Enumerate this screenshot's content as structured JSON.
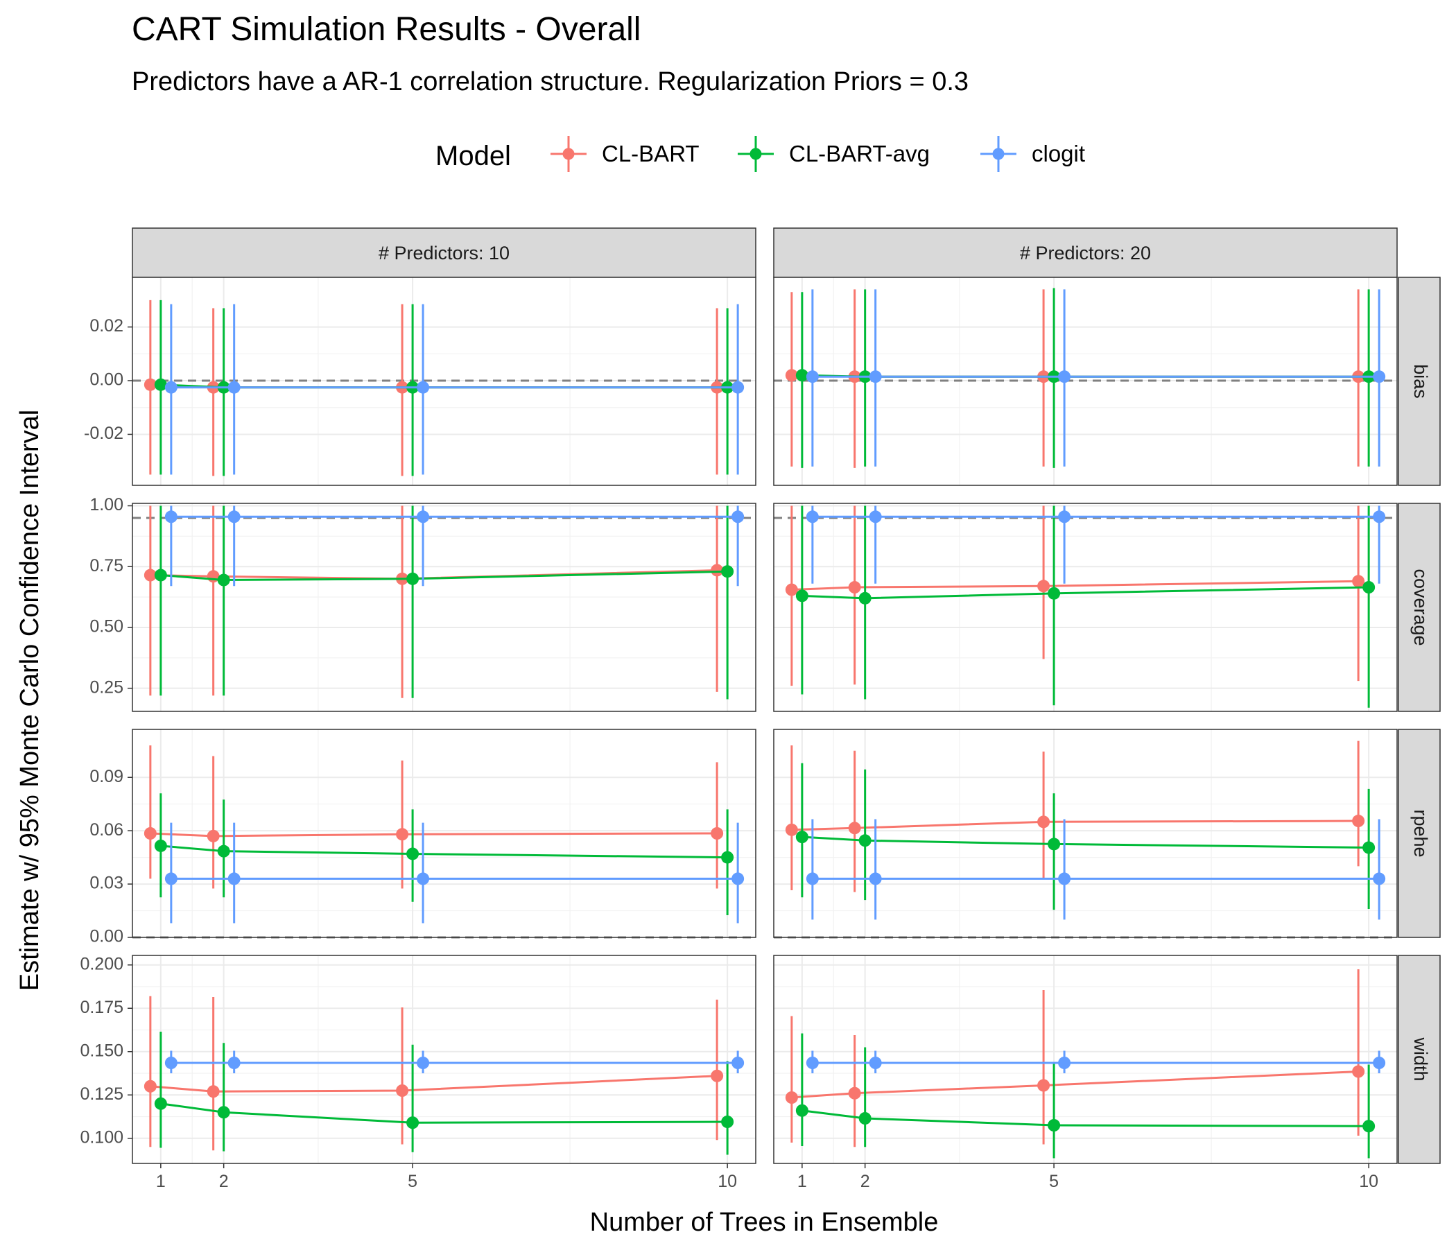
{
  "chart_data": {
    "type": "line",
    "title": "CART Simulation Results - Overall",
    "subtitle": "Predictors have a AR-1 correlation structure. Regularization Priors = 0.3",
    "xlabel": "Number of Trees in Ensemble",
    "ylabel": "Estimate w/ 95% Monte Carlo Confidence Interval",
    "legend": {
      "title": "Model",
      "position": "top",
      "entries": [
        {
          "name": "CL-BART",
          "color": "#F8766D"
        },
        {
          "name": "CL-BART-avg",
          "color": "#00BA38"
        },
        {
          "name": "clogit",
          "color": "#619CFF"
        }
      ]
    },
    "x_ticks": [
      1,
      2,
      5,
      10
    ],
    "x_range": [
      0.55,
      10.45
    ],
    "grid": true,
    "columns": [
      {
        "label": "# Predictors: 10"
      },
      {
        "label": "# Predictors: 20"
      }
    ],
    "rows": [
      {
        "label": "bias",
        "ylim": [
          -0.039,
          0.0385
        ],
        "ticks": [
          -0.02,
          0.0,
          0.02
        ],
        "tick_labels": [
          "-0.02",
          "0.00",
          "0.02"
        ],
        "reference_line": 0.0
      },
      {
        "label": "coverage",
        "ylim": [
          0.155,
          1.01
        ],
        "ticks": [
          0.25,
          0.5,
          0.75,
          1.0
        ],
        "tick_labels": [
          "0.25",
          "0.50",
          "0.75",
          "1.00"
        ],
        "reference_line": 0.95
      },
      {
        "label": "rpehe",
        "ylim": [
          0.0,
          0.117
        ],
        "ticks": [
          0.0,
          0.03,
          0.06,
          0.09
        ],
        "tick_labels": [
          "0.00",
          "0.03",
          "0.06",
          "0.09"
        ],
        "reference_line": 0.0
      },
      {
        "label": "width",
        "ylim": [
          0.0855,
          0.2055
        ],
        "ticks": [
          0.1,
          0.125,
          0.15,
          0.175,
          0.2
        ],
        "tick_labels": [
          "0.100",
          "0.125",
          "0.150",
          "0.175",
          "0.200"
        ],
        "reference_line": null
      }
    ],
    "panels": [
      {
        "row": "bias",
        "column": "# Predictors: 10",
        "series": [
          {
            "model": "CL-BART",
            "points": [
              {
                "x": 1,
                "y": -0.0015,
                "lo": -0.035,
                "hi": 0.03
              },
              {
                "x": 2,
                "y": -0.0025,
                "lo": -0.0355,
                "hi": 0.027
              },
              {
                "x": 5,
                "y": -0.0025,
                "lo": -0.0355,
                "hi": 0.0285
              },
              {
                "x": 10,
                "y": -0.0025,
                "lo": -0.035,
                "hi": 0.027
              }
            ]
          },
          {
            "model": "CL-BART-avg",
            "points": [
              {
                "x": 1,
                "y": -0.0015,
                "lo": -0.035,
                "hi": 0.03
              },
              {
                "x": 2,
                "y": -0.0025,
                "lo": -0.0355,
                "hi": 0.027
              },
              {
                "x": 5,
                "y": -0.0025,
                "lo": -0.0355,
                "hi": 0.0285
              },
              {
                "x": 10,
                "y": -0.0025,
                "lo": -0.035,
                "hi": 0.027
              }
            ]
          },
          {
            "model": "clogit",
            "points": [
              {
                "x": 1,
                "y": -0.0025,
                "lo": -0.035,
                "hi": 0.0285
              },
              {
                "x": 2,
                "y": -0.0025,
                "lo": -0.035,
                "hi": 0.0285
              },
              {
                "x": 5,
                "y": -0.0025,
                "lo": -0.035,
                "hi": 0.0285
              },
              {
                "x": 10,
                "y": -0.0025,
                "lo": -0.035,
                "hi": 0.0285
              }
            ]
          }
        ]
      },
      {
        "row": "bias",
        "column": "# Predictors: 20",
        "series": [
          {
            "model": "CL-BART",
            "points": [
              {
                "x": 1,
                "y": 0.002,
                "lo": -0.032,
                "hi": 0.033
              },
              {
                "x": 2,
                "y": 0.0015,
                "lo": -0.0325,
                "hi": 0.034
              },
              {
                "x": 5,
                "y": 0.0015,
                "lo": -0.032,
                "hi": 0.034
              },
              {
                "x": 10,
                "y": 0.0015,
                "lo": -0.032,
                "hi": 0.034
              }
            ]
          },
          {
            "model": "CL-BART-avg",
            "points": [
              {
                "x": 1,
                "y": 0.002,
                "lo": -0.0325,
                "hi": 0.033
              },
              {
                "x": 2,
                "y": 0.0015,
                "lo": -0.032,
                "hi": 0.034
              },
              {
                "x": 5,
                "y": 0.0015,
                "lo": -0.0325,
                "hi": 0.0345
              },
              {
                "x": 10,
                "y": 0.0015,
                "lo": -0.032,
                "hi": 0.034
              }
            ]
          },
          {
            "model": "clogit",
            "points": [
              {
                "x": 1,
                "y": 0.0015,
                "lo": -0.032,
                "hi": 0.034
              },
              {
                "x": 2,
                "y": 0.0015,
                "lo": -0.032,
                "hi": 0.034
              },
              {
                "x": 5,
                "y": 0.0015,
                "lo": -0.032,
                "hi": 0.034
              },
              {
                "x": 10,
                "y": 0.0015,
                "lo": -0.032,
                "hi": 0.034
              }
            ]
          }
        ]
      },
      {
        "row": "coverage",
        "column": "# Predictors: 10",
        "series": [
          {
            "model": "CL-BART",
            "points": [
              {
                "x": 1,
                "y": 0.715,
                "lo": 0.22,
                "hi": 1.0
              },
              {
                "x": 2,
                "y": 0.71,
                "lo": 0.22,
                "hi": 1.0
              },
              {
                "x": 5,
                "y": 0.7,
                "lo": 0.21,
                "hi": 1.0
              },
              {
                "x": 10,
                "y": 0.735,
                "lo": 0.235,
                "hi": 1.0
              }
            ]
          },
          {
            "model": "CL-BART-avg",
            "points": [
              {
                "x": 1,
                "y": 0.715,
                "lo": 0.22,
                "hi": 1.0
              },
              {
                "x": 2,
                "y": 0.695,
                "lo": 0.22,
                "hi": 1.0
              },
              {
                "x": 5,
                "y": 0.7,
                "lo": 0.21,
                "hi": 1.0
              },
              {
                "x": 10,
                "y": 0.73,
                "lo": 0.205,
                "hi": 1.0
              }
            ]
          },
          {
            "model": "clogit",
            "points": [
              {
                "x": 1,
                "y": 0.955,
                "lo": 0.67,
                "hi": 1.0
              },
              {
                "x": 2,
                "y": 0.955,
                "lo": 0.67,
                "hi": 1.0
              },
              {
                "x": 5,
                "y": 0.955,
                "lo": 0.67,
                "hi": 1.0
              },
              {
                "x": 10,
                "y": 0.955,
                "lo": 0.67,
                "hi": 1.0
              }
            ]
          }
        ]
      },
      {
        "row": "coverage",
        "column": "# Predictors: 20",
        "series": [
          {
            "model": "CL-BART",
            "points": [
              {
                "x": 1,
                "y": 0.655,
                "lo": 0.26,
                "hi": 1.0
              },
              {
                "x": 2,
                "y": 0.665,
                "lo": 0.265,
                "hi": 1.0
              },
              {
                "x": 5,
                "y": 0.67,
                "lo": 0.37,
                "hi": 1.0
              },
              {
                "x": 10,
                "y": 0.69,
                "lo": 0.28,
                "hi": 1.0
              }
            ]
          },
          {
            "model": "CL-BART-avg",
            "points": [
              {
                "x": 1,
                "y": 0.63,
                "lo": 0.225,
                "hi": 1.0
              },
              {
                "x": 2,
                "y": 0.62,
                "lo": 0.205,
                "hi": 1.0
              },
              {
                "x": 5,
                "y": 0.64,
                "lo": 0.18,
                "hi": 1.0
              },
              {
                "x": 10,
                "y": 0.665,
                "lo": 0.17,
                "hi": 1.0
              }
            ]
          },
          {
            "model": "clogit",
            "points": [
              {
                "x": 1,
                "y": 0.955,
                "lo": 0.68,
                "hi": 1.0
              },
              {
                "x": 2,
                "y": 0.955,
                "lo": 0.68,
                "hi": 1.0
              },
              {
                "x": 5,
                "y": 0.955,
                "lo": 0.68,
                "hi": 1.0
              },
              {
                "x": 10,
                "y": 0.955,
                "lo": 0.68,
                "hi": 1.0
              }
            ]
          }
        ]
      },
      {
        "row": "rpehe",
        "column": "# Predictors: 10",
        "series": [
          {
            "model": "CL-BART",
            "points": [
              {
                "x": 1,
                "y": 0.0585,
                "lo": 0.033,
                "hi": 0.108
              },
              {
                "x": 2,
                "y": 0.057,
                "lo": 0.0275,
                "hi": 0.102
              },
              {
                "x": 5,
                "y": 0.058,
                "lo": 0.0275,
                "hi": 0.0995
              },
              {
                "x": 10,
                "y": 0.0585,
                "lo": 0.0275,
                "hi": 0.0985
              }
            ]
          },
          {
            "model": "CL-BART-avg",
            "points": [
              {
                "x": 1,
                "y": 0.0515,
                "lo": 0.0225,
                "hi": 0.081
              },
              {
                "x": 2,
                "y": 0.0485,
                "lo": 0.0225,
                "hi": 0.0775
              },
              {
                "x": 5,
                "y": 0.047,
                "lo": 0.02,
                "hi": 0.072
              },
              {
                "x": 10,
                "y": 0.045,
                "lo": 0.0125,
                "hi": 0.072
              }
            ]
          },
          {
            "model": "clogit",
            "points": [
              {
                "x": 1,
                "y": 0.033,
                "lo": 0.008,
                "hi": 0.0645
              },
              {
                "x": 2,
                "y": 0.033,
                "lo": 0.008,
                "hi": 0.0645
              },
              {
                "x": 5,
                "y": 0.033,
                "lo": 0.008,
                "hi": 0.0645
              },
              {
                "x": 10,
                "y": 0.033,
                "lo": 0.008,
                "hi": 0.0645
              }
            ]
          }
        ]
      },
      {
        "row": "rpehe",
        "column": "# Predictors: 20",
        "series": [
          {
            "model": "CL-BART",
            "points": [
              {
                "x": 1,
                "y": 0.0605,
                "lo": 0.0265,
                "hi": 0.108
              },
              {
                "x": 2,
                "y": 0.0615,
                "lo": 0.0255,
                "hi": 0.105
              },
              {
                "x": 5,
                "y": 0.065,
                "lo": 0.0335,
                "hi": 0.1045
              },
              {
                "x": 10,
                "y": 0.0655,
                "lo": 0.04,
                "hi": 0.1105
              }
            ]
          },
          {
            "model": "CL-BART-avg",
            "points": [
              {
                "x": 1,
                "y": 0.0565,
                "lo": 0.0225,
                "hi": 0.098
              },
              {
                "x": 2,
                "y": 0.0545,
                "lo": 0.021,
                "hi": 0.0945
              },
              {
                "x": 5,
                "y": 0.0525,
                "lo": 0.0155,
                "hi": 0.081
              },
              {
                "x": 10,
                "y": 0.0505,
                "lo": 0.016,
                "hi": 0.0835
              }
            ]
          },
          {
            "model": "clogit",
            "points": [
              {
                "x": 1,
                "y": 0.033,
                "lo": 0.01,
                "hi": 0.0665
              },
              {
                "x": 2,
                "y": 0.033,
                "lo": 0.01,
                "hi": 0.0665
              },
              {
                "x": 5,
                "y": 0.033,
                "lo": 0.01,
                "hi": 0.0665
              },
              {
                "x": 10,
                "y": 0.033,
                "lo": 0.01,
                "hi": 0.0665
              }
            ]
          }
        ]
      },
      {
        "row": "width",
        "column": "# Predictors: 10",
        "series": [
          {
            "model": "CL-BART",
            "points": [
              {
                "x": 1,
                "y": 0.13,
                "lo": 0.095,
                "hi": 0.182
              },
              {
                "x": 2,
                "y": 0.127,
                "lo": 0.093,
                "hi": 0.1815
              },
              {
                "x": 5,
                "y": 0.1275,
                "lo": 0.0965,
                "hi": 0.1755
              },
              {
                "x": 10,
                "y": 0.136,
                "lo": 0.099,
                "hi": 0.18
              }
            ]
          },
          {
            "model": "CL-BART-avg",
            "points": [
              {
                "x": 1,
                "y": 0.12,
                "lo": 0.0945,
                "hi": 0.1615
              },
              {
                "x": 2,
                "y": 0.115,
                "lo": 0.0925,
                "hi": 0.155
              },
              {
                "x": 5,
                "y": 0.109,
                "lo": 0.092,
                "hi": 0.154
              },
              {
                "x": 10,
                "y": 0.1095,
                "lo": 0.0905,
                "hi": 0.1445
              }
            ]
          },
          {
            "model": "clogit",
            "points": [
              {
                "x": 1,
                "y": 0.1435,
                "lo": 0.1375,
                "hi": 0.1505
              },
              {
                "x": 2,
                "y": 0.1435,
                "lo": 0.1375,
                "hi": 0.1505
              },
              {
                "x": 5,
                "y": 0.1435,
                "lo": 0.1375,
                "hi": 0.1505
              },
              {
                "x": 10,
                "y": 0.1435,
                "lo": 0.1375,
                "hi": 0.1505
              }
            ]
          }
        ]
      },
      {
        "row": "width",
        "column": "# Predictors: 20",
        "series": [
          {
            "model": "CL-BART",
            "points": [
              {
                "x": 1,
                "y": 0.1235,
                "lo": 0.0975,
                "hi": 0.1705
              },
              {
                "x": 2,
                "y": 0.126,
                "lo": 0.095,
                "hi": 0.1595
              },
              {
                "x": 5,
                "y": 0.1305,
                "lo": 0.0965,
                "hi": 0.1855
              },
              {
                "x": 10,
                "y": 0.1385,
                "lo": 0.1015,
                "hi": 0.1975
              }
            ]
          },
          {
            "model": "CL-BART-avg",
            "points": [
              {
                "x": 1,
                "y": 0.116,
                "lo": 0.0955,
                "hi": 0.1605
              },
              {
                "x": 2,
                "y": 0.1115,
                "lo": 0.095,
                "hi": 0.1525
              },
              {
                "x": 5,
                "y": 0.1075,
                "lo": 0.0885,
                "hi": 0.143
              },
              {
                "x": 10,
                "y": 0.107,
                "lo": 0.0885,
                "hi": 0.1425
              }
            ]
          },
          {
            "model": "clogit",
            "points": [
              {
                "x": 1,
                "y": 0.1435,
                "lo": 0.1375,
                "hi": 0.1505
              },
              {
                "x": 2,
                "y": 0.1435,
                "lo": 0.1375,
                "hi": 0.1505
              },
              {
                "x": 5,
                "y": 0.1435,
                "lo": 0.1375,
                "hi": 0.1505
              },
              {
                "x": 10,
                "y": 0.1435,
                "lo": 0.1375,
                "hi": 0.1505
              }
            ]
          }
        ]
      }
    ]
  }
}
